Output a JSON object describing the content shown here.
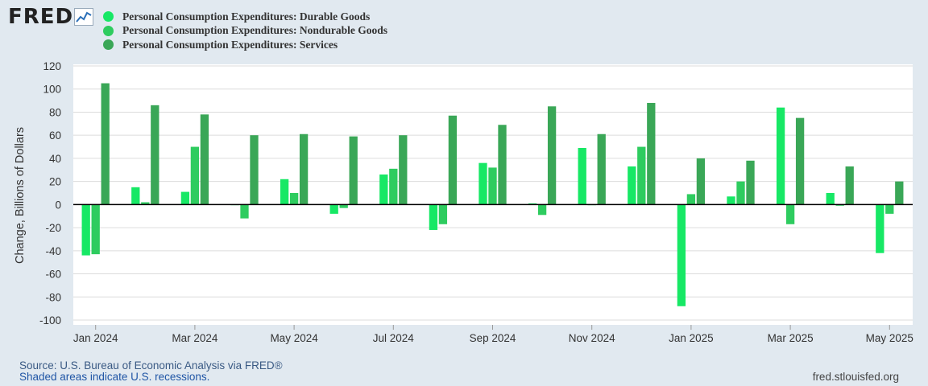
{
  "logo": {
    "text": "FRED",
    "icon": "fred-line-chart-icon"
  },
  "legend": [
    {
      "label": "Personal Consumption Expenditures: Durable Goods",
      "color": "#17e865"
    },
    {
      "label": "Personal Consumption Expenditures: Nondurable Goods",
      "color": "#2ecc5f"
    },
    {
      "label": "Personal Consumption Expenditures: Services",
      "color": "#3aa757"
    }
  ],
  "footer": {
    "source": "Source: U.S. Bureau of Economic Analysis via FRED®",
    "note": "Shaded areas indicate U.S. recessions.",
    "url": "fred.stlouisfed.org"
  },
  "chart_data": {
    "type": "bar",
    "ylabel": "Change, Billions of Dollars",
    "ylim": [
      -100,
      120
    ],
    "yticks": [
      120,
      100,
      80,
      60,
      40,
      20,
      0,
      -20,
      -40,
      -60,
      -80,
      -100
    ],
    "grid": true,
    "xtick_labels": [
      "Jan 2024",
      "Mar 2024",
      "May 2024",
      "Jul 2024",
      "Sep 2024",
      "Nov 2024",
      "Jan 2025",
      "Mar 2025",
      "May 2025"
    ],
    "categories": [
      "Jan 2024",
      "Feb 2024",
      "Mar 2024",
      "Apr 2024",
      "May 2024",
      "Jun 2024",
      "Jul 2024",
      "Aug 2024",
      "Sep 2024",
      "Oct 2024",
      "Nov 2024",
      "Dec 2024",
      "Jan 2025",
      "Feb 2025",
      "Mar 2025",
      "Apr 2025",
      "May 2025"
    ],
    "series": [
      {
        "name": "Personal Consumption Expenditures: Durable Goods",
        "color": "#17e865",
        "values": [
          -44,
          15,
          11,
          0,
          22,
          -8,
          26,
          -22,
          36,
          1,
          49,
          33,
          -88,
          7,
          84,
          10,
          -42
        ]
      },
      {
        "name": "Personal Consumption Expenditures: Nondurable Goods",
        "color": "#2ecc5f",
        "values": [
          -43,
          2,
          50,
          -12,
          10,
          -3,
          31,
          -17,
          32,
          -9,
          0,
          50,
          9,
          20,
          -17,
          -1,
          -8
        ]
      },
      {
        "name": "Personal Consumption Expenditures: Services",
        "color": "#3aa757",
        "values": [
          105,
          86,
          78,
          60,
          61,
          59,
          60,
          77,
          69,
          85,
          61,
          88,
          40,
          38,
          75,
          33,
          20
        ]
      }
    ]
  }
}
